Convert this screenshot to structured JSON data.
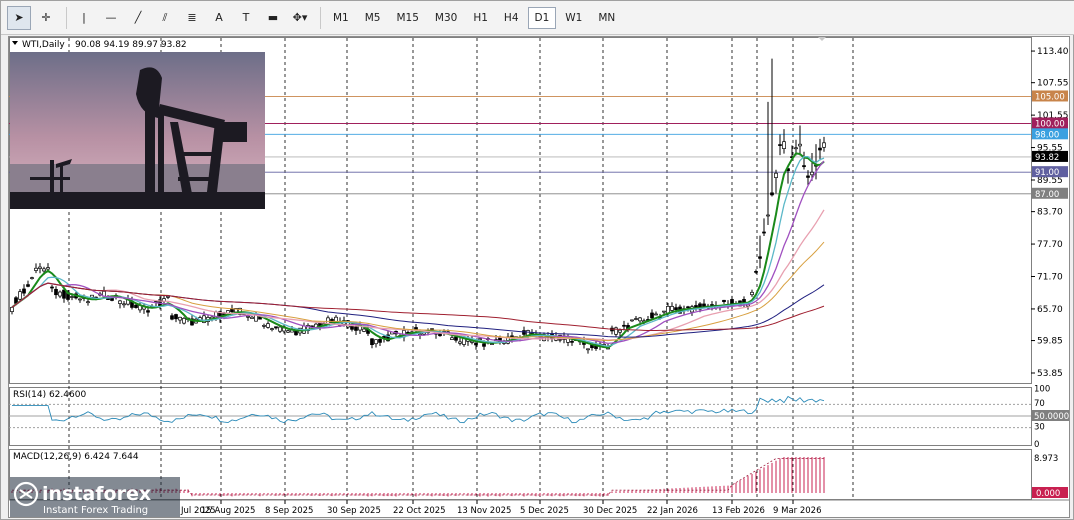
{
  "toolbar": {
    "tools": [
      {
        "name": "cursor-icon",
        "glyph": "➤"
      },
      {
        "name": "crosshair-icon",
        "glyph": "✛"
      },
      {
        "name": "vertical-line-icon",
        "glyph": "|"
      },
      {
        "name": "horizontal-line-icon",
        "glyph": "—"
      },
      {
        "name": "trendline-icon",
        "glyph": "╱"
      },
      {
        "name": "channel-icon",
        "glyph": "⫽"
      },
      {
        "name": "fibonacci-icon",
        "glyph": "≣"
      },
      {
        "name": "text-icon",
        "glyph": "A"
      },
      {
        "name": "text-label-icon",
        "glyph": "T"
      },
      {
        "name": "rectangle-icon",
        "glyph": "▬"
      },
      {
        "name": "shapes-dropdown-icon",
        "glyph": "✥▾"
      }
    ],
    "timeframes": [
      "M1",
      "M5",
      "M15",
      "M30",
      "H1",
      "H4",
      "D1",
      "W1",
      "MN"
    ],
    "active_timeframe": "D1"
  },
  "chart": {
    "symbol_label": "WTI,Daily",
    "ohlc_text": "90.08 94.19 89.97 93.82",
    "price_ticks": [
      "113.40",
      "107.55",
      "101.55",
      "95.55",
      "89.55",
      "83.70",
      "77.70",
      "71.70",
      "65.70",
      "59.85",
      "53.85"
    ],
    "level_labels": [
      {
        "text": "105.00",
        "price": 105.0,
        "color": "#c8844a"
      },
      {
        "text": "100.00",
        "price": 100.0,
        "color": "#a0205c"
      },
      {
        "text": "98.00",
        "price": 98.0,
        "color": "#3aa0e0"
      },
      {
        "text": "93.82",
        "price": 93.82,
        "color": "#000000"
      },
      {
        "text": "91.00",
        "price": 91.0,
        "color": "#6060a0"
      },
      {
        "text": "87.00",
        "price": 87.0,
        "color": "#808080"
      }
    ],
    "date_labels": [
      "15 Aug 2025",
      "8 Sep 2025",
      "30 Sep 2025",
      "22 Oct 2025",
      "13 Nov 2025",
      "5 Dec 2025",
      "30 Dec 2025",
      "22 Jan 2026",
      "13 Feb 2026",
      "9 Mar 2026"
    ],
    "date_label_partial_left": "Jul 2025"
  },
  "rsi": {
    "label": "RSI(14) 62.4600",
    "ticks": [
      "100",
      "70",
      "30",
      "0"
    ],
    "current_label": "50.0000"
  },
  "macd": {
    "label": "MACD(12,26,9) 6.424 7.644",
    "top_label": "8.973",
    "zero_label": "0.000"
  },
  "branding": {
    "name": "instaforex",
    "tagline": "Instant Forex Trading"
  },
  "colors": {
    "candle": "#000000",
    "ma_green": "#1a8a1a",
    "ma_teal": "#5bb8c8",
    "ma_violet": "#a050c0",
    "ma_pink": "#e8a0b0",
    "ma_orange": "#d8a040",
    "ma_navy": "#202080",
    "ma_maroon": "#a02030",
    "rsi_line": "#2a8ab8",
    "macd_hist": "#c82050"
  }
}
